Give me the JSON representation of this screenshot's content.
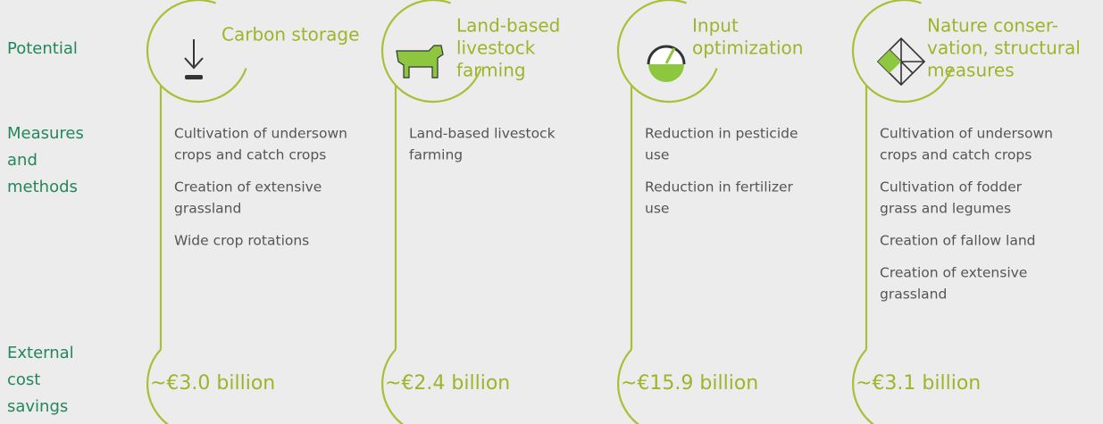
{
  "row_labels": [
    [
      "Potential"
    ],
    [
      "Measures",
      "and",
      "methods"
    ],
    [
      "External",
      "cost",
      "savings"
    ]
  ],
  "columns": [
    {
      "title": [
        "Carbon storage"
      ],
      "measures": [
        [
          "Cultivation of undersown",
          "crops and catch crops"
        ],
        [
          "Creation of extensive",
          "grassland"
        ],
        [
          "Wide crop rotations"
        ]
      ],
      "savings": "~€3.0 billion"
    },
    {
      "title": [
        "Land-based",
        "livestock",
        "farming"
      ],
      "measures": [
        [
          "Land-based livestock",
          "farming"
        ]
      ],
      "savings": "~€2.4 billion"
    },
    {
      "title": [
        "Input",
        "optimization"
      ],
      "measures": [
        [
          "Reduction in pesticide",
          "use"
        ],
        [
          "Reduction in fertilizer",
          "use"
        ]
      ],
      "savings": "~€15.9 billion"
    },
    {
      "title": [
        "Nature conser-",
        "vation, structural",
        "measures"
      ],
      "measures": [
        [
          "Cultivation of undersown",
          "crops and catch crops"
        ],
        [
          "Cultivation of fodder",
          "grass and legumes"
        ],
        [
          "Creation of fallow land"
        ],
        [
          "Creation of extensive",
          "grassland"
        ]
      ],
      "savings": "~€3.1 billion"
    }
  ]
}
